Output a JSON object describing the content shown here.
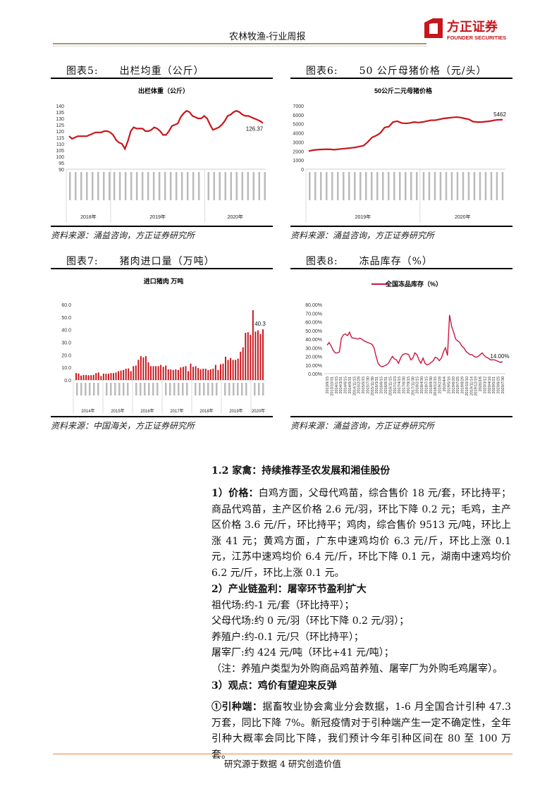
{
  "header": {
    "title": "农林牧渔-行业周报",
    "logo_cn": "方正证券",
    "logo_en": "FOUNDER SECURITIES",
    "brand_color": "#c8161d"
  },
  "figures": [
    {
      "label": "图表5:",
      "title": "出栏均重（公斤）",
      "source": "资料来源：涌益咨询，方正证券研究所"
    },
    {
      "label": "图表6:",
      "title": "50 公斤母猪价格（元/头）",
      "source": "资料来源：涌益咨询，方正证券研究所"
    },
    {
      "label": "图表7:",
      "title": "猪肉进口量（万吨）",
      "source": "资料来源：中国海关，方正证券研究所"
    },
    {
      "label": "图表8:",
      "title": "冻品库存（%）",
      "source": "资料来源：涌益咨询，方正证券研究所"
    }
  ],
  "chart_data": [
    {
      "type": "line",
      "title": "出栏体重（公斤）",
      "ylim": [
        90,
        140
      ],
      "yticks": [
        90,
        95,
        100,
        105,
        110,
        115,
        120,
        125,
        130,
        135,
        140
      ],
      "groups": [
        "2018年",
        "2019年",
        "2020年"
      ],
      "last_label": "126.37",
      "color": "#c8161d",
      "values": [
        116,
        114,
        115,
        116,
        116,
        116,
        116,
        117,
        118,
        119,
        119,
        119,
        120,
        120,
        119,
        117,
        113,
        111,
        110,
        106,
        112,
        120,
        123,
        122,
        122,
        122,
        120,
        120,
        121,
        123,
        122,
        120,
        117,
        117,
        120,
        124,
        125,
        126,
        131,
        134,
        136,
        135,
        132,
        131,
        130,
        130,
        132,
        130,
        125,
        121,
        122,
        123,
        125,
        128,
        132,
        133,
        135,
        136,
        135,
        133,
        132,
        132,
        131,
        130,
        129,
        128,
        126.37
      ]
    },
    {
      "type": "line",
      "title": "50公斤二元母猪价格",
      "ylim": [
        0,
        7000
      ],
      "yticks": [
        0,
        1000,
        2000,
        3000,
        4000,
        5000,
        6000,
        7000
      ],
      "groups": [
        "2019年",
        "2020年"
      ],
      "last_label": "5462",
      "color": "#c8161d",
      "values": [
        2000,
        2100,
        2150,
        2180,
        2200,
        2200,
        2150,
        2200,
        2250,
        2300,
        2350,
        2400,
        2500,
        2600,
        3000,
        3500,
        3700,
        4000,
        4600,
        4700,
        5200,
        5300,
        5100,
        5050,
        5100,
        5200,
        5150,
        5200,
        5300,
        5400,
        5400,
        5500,
        5600,
        5650,
        5700,
        5750,
        5700,
        5600,
        5500,
        5250,
        5200,
        5200,
        5250,
        5300,
        5400,
        5450,
        5462
      ]
    },
    {
      "type": "bar",
      "title": "进口猪肉 万吨",
      "ylim": [
        0,
        60
      ],
      "yticks": [
        "0.0",
        "10.0",
        "20.0",
        "30.0",
        "40.0",
        "50.0",
        "60.0"
      ],
      "groups": [
        "2014年",
        "2015年",
        "2016年",
        "2017年",
        "2018年",
        "2019年",
        "2020年"
      ],
      "last_label": "40.3",
      "color": "#c8161d",
      "values": [
        5.5,
        5.2,
        3.5,
        4,
        4,
        3.8,
        3.8,
        4,
        5.5,
        6,
        3.2,
        5,
        5,
        5,
        5.5,
        5.5,
        6,
        7,
        7.5,
        8,
        9,
        9.2,
        7,
        11,
        11.5,
        16,
        19,
        18,
        19,
        14,
        11,
        11,
        11,
        11,
        12,
        10.5,
        11.5,
        8.5,
        8.5,
        8,
        8.5,
        8,
        10,
        10.5,
        11,
        7,
        13,
        10.5,
        11,
        9.5,
        8.5,
        9,
        9,
        8,
        8.5,
        9,
        12,
        8,
        12.5,
        13,
        18.5,
        16,
        17.5,
        16,
        16,
        17,
        22.5,
        26,
        37.5,
        38,
        36,
        55.5,
        38.5,
        39.5,
        36.5,
        40.3
      ]
    },
    {
      "type": "line",
      "title": "全国冻品库存（%）",
      "legend": "全国冻品库存（%）",
      "legend_position": "top",
      "ylim": [
        0,
        80
      ],
      "yticks": [
        "0.00%",
        "10.00%",
        "20.00%",
        "30.00%",
        "40.00%",
        "50.00%",
        "60.00%",
        "70.00%",
        "80.00%"
      ],
      "last_label": "14.00%",
      "color": "#c8173e",
      "xticks": [
        "2013/9/15",
        "2013/10/31",
        "2014/1/15",
        "2014/3/31",
        "2014/6/15",
        "2014/9/31",
        "2014/11/15",
        "2015/2/28",
        "2015/5/15",
        "2015/7/30",
        "2015/11/30",
        "2016/3/31",
        "2016/6/15",
        "2016/9/31",
        "2016/11/15",
        "2017/1/23",
        "2017/4/15",
        "2017/6/30",
        "2017/9/15",
        "2017/11/30",
        "2018/2/15",
        "2018/4/30",
        "2018/7/15",
        "2018/9/30",
        "2018/12/15",
        "2019/2/28",
        "2019/4/4",
        "2019/5/16",
        "2019/6/20",
        "2019/7/25",
        "2019/8/29",
        "2019/10/10",
        "2019/11/14",
        "2019/12/19",
        "2020/2/6",
        "2020/3/12",
        "2020/4/16",
        "2020/5/21",
        "2020/6/25",
        "2020/7/30"
      ],
      "values": [
        33,
        36,
        32,
        27,
        24,
        24,
        25,
        41,
        45,
        46,
        44,
        48,
        42,
        41,
        41,
        40,
        41,
        40,
        38,
        37,
        36,
        35,
        34,
        30,
        20,
        12,
        9,
        8,
        9,
        10,
        12,
        16,
        20,
        17,
        16,
        12,
        18,
        22,
        23,
        23,
        22,
        16,
        18,
        24,
        22,
        16,
        12,
        18,
        12,
        10,
        11,
        13,
        15,
        19,
        18,
        15,
        18,
        25,
        30,
        21,
        68,
        55,
        48,
        40,
        38,
        36,
        32,
        30,
        26,
        24,
        22,
        22,
        20,
        19,
        20,
        22,
        24,
        21,
        19,
        18,
        16,
        16,
        16,
        15,
        14,
        13,
        14
      ]
    }
  ],
  "section": {
    "heading": "1.2   家禽：持续推荐圣农发展和湘佳股份",
    "p1_label": "1）价格：",
    "p1": "白鸡方面，父母代鸡苗，综合售价 18 元/套，环比持平；商品代鸡苗，主产区价格 2.6 元/羽，环比下降 0.2 元；毛鸡，主产区价格 3.6 元/斤，环比持平；鸡肉，综合售价 9513 元/吨，环比上涨 41 元；黄鸡方面，广东中速鸡均价 6.3 元/斤，环比上涨 0.1 元，江苏中速鸡均价 6.4 元/斤，环比下降 0.1 元，湖南中速鸡均价 6.2 元/斤，环比上涨 0.1 元。",
    "p2_heading": "2）产业链盈利：屠宰环节盈利扩大",
    "p2_lines": [
      "祖代场:约-1 元/套（环比持平）；",
      "父母代场:约 0 元/羽（环比下降 0.2 元/羽）；",
      "养殖户:约-0.1 元/只（环比持平）；",
      "屠宰厂:约 424 元/吨（环比+41 元/吨）；",
      "（注：养殖户类型为外购商品鸡苗养殖、屠宰厂为外购毛鸡屠宰）。"
    ],
    "p3_heading": "3）观点：鸡价有望迎来反弹",
    "p3_label": "①引种端：",
    "p3": "据畜牧业协会禽业分会数据，1-6 月全国合计引种 47.3 万套，同比下降 7%。新冠疫情对于引种端产生一定不确定性，全年引种大概率会同比下降，我们预计今年引种区间在 80 至 100 万套。"
  },
  "footer": {
    "text": "研究源于数据 4 研究创造价值"
  }
}
